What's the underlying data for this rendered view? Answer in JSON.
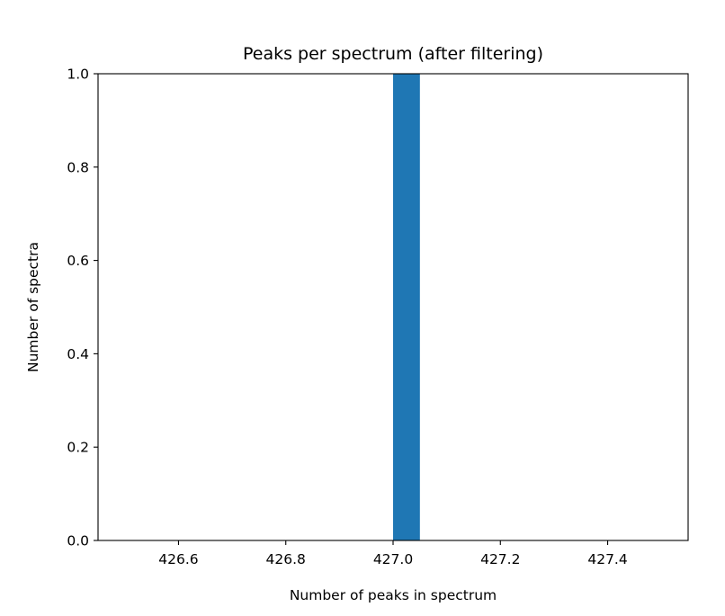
{
  "chart_data": {
    "type": "bar",
    "title": "Peaks per spectrum (after filtering)",
    "xlabel": "Number of peaks in spectrum",
    "ylabel": "Number of spectra",
    "xlim": [
      426.45,
      427.55
    ],
    "ylim": [
      0.0,
      1.0
    ],
    "xticks": [
      "426.6",
      "426.8",
      "427.0",
      "427.2",
      "427.4"
    ],
    "xtick_values": [
      426.6,
      426.8,
      427.0,
      427.2,
      427.4
    ],
    "yticks": [
      "0.0",
      "0.2",
      "0.4",
      "0.6",
      "0.8",
      "1.0"
    ],
    "ytick_values": [
      0.0,
      0.2,
      0.4,
      0.6,
      0.8,
      1.0
    ],
    "bars": [
      {
        "x_start": 427.0,
        "x_end": 427.05,
        "value": 1
      }
    ],
    "bar_color": "#1f77b4",
    "grid": false,
    "legend": "none"
  }
}
